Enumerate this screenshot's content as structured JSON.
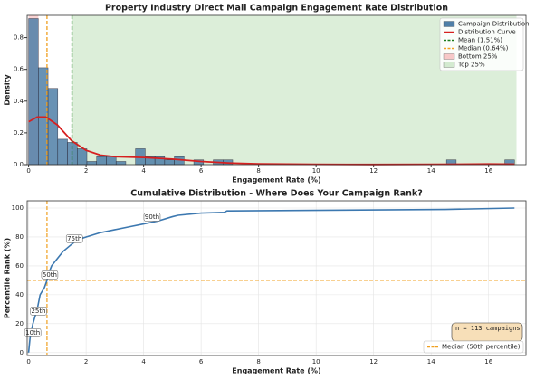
{
  "chart_data": [
    {
      "type": "histogram",
      "title": "Property Industry Direct Mail Campaign Engagement Rate Distribution",
      "x_label": "Engagement Rate (%)",
      "y_label": "Density",
      "name": "Campaign Distribution",
      "color": "#4f7fa8",
      "bins": [
        0,
        0.338,
        0.676,
        1.014,
        1.352,
        1.69,
        2.028,
        2.366,
        2.704,
        3.042,
        3.38,
        3.718,
        4.056,
        4.394,
        4.732,
        5.07,
        5.408,
        5.746,
        6.084,
        6.422,
        6.76,
        7.098,
        7.436,
        7.774,
        8.112,
        8.45,
        8.788,
        9.126,
        9.464,
        9.802,
        10.14,
        10.478,
        10.816,
        11.154,
        11.492,
        11.83,
        12.168,
        12.506,
        12.844,
        13.182,
        13.52,
        13.858,
        14.196,
        14.534,
        14.872,
        15.21,
        15.548,
        15.886,
        16.224,
        16.562,
        16.9
      ],
      "values": [
        0.92,
        0.61,
        0.48,
        0.16,
        0.14,
        0.1,
        0.02,
        0.05,
        0.05,
        0.02,
        0,
        0.1,
        0.05,
        0.05,
        0.03,
        0.05,
        0,
        0.03,
        0,
        0.03,
        0.03,
        0,
        0,
        0,
        0,
        0,
        0,
        0,
        0,
        0,
        0,
        0,
        0,
        0,
        0,
        0,
        0,
        0,
        0,
        0,
        0,
        0,
        0,
        0.03,
        0,
        0,
        0,
        0,
        0,
        0.03
      ],
      "curve": {
        "name": "Distribution Curve",
        "color": "#d62020",
        "x": [
          0,
          0.3,
          0.6,
          1,
          1.5,
          2,
          2.5,
          3,
          4,
          5,
          6,
          7,
          8,
          10,
          12,
          14,
          16,
          16.9
        ],
        "values": [
          0.27,
          0.3,
          0.3,
          0.25,
          0.15,
          0.09,
          0.06,
          0.05,
          0.045,
          0.035,
          0.02,
          0.01,
          0.005,
          0.002,
          0.001,
          0.002,
          0.004,
          0.003
        ]
      },
      "lines": [
        {
          "name": "Mean (1.51%)",
          "value": 1.51,
          "color": "#1a7a1a"
        },
        {
          "name": "Median (0.64%)",
          "value": 0.64,
          "color": "#f0a020"
        }
      ],
      "spans": [
        {
          "name": "Bottom 25%",
          "range": [
            0,
            0.34
          ],
          "color": "#f7c8c8"
        },
        {
          "name": "Top 25%",
          "range": [
            1.51,
            16.97
          ],
          "color": "#d3ead0"
        }
      ],
      "xlim": [
        -0.05,
        17.3
      ],
      "ylim": [
        0,
        0.94
      ],
      "xticks": [
        0,
        2,
        4,
        6,
        8,
        10,
        12,
        14,
        16
      ],
      "yticks": [
        {
          "value": 0,
          "label": "0.0"
        },
        {
          "value": 0.2,
          "label": "0.2"
        },
        {
          "value": 0.4,
          "label": "0.4"
        },
        {
          "value": 0.6,
          "label": "0.6"
        },
        {
          "value": 0.8,
          "label": "0.8"
        }
      ],
      "legend": "upper right"
    },
    {
      "type": "line",
      "title": "Cumulative Distribution - Where Does Your Campaign Rank?",
      "x_label": "Engagement Rate (%)",
      "y_label": "Percentile Rank (%)",
      "color": "#3c78b0",
      "x": [
        0,
        0.05,
        0.15,
        0.3,
        0.4,
        0.55,
        0.64,
        0.7,
        0.8,
        1,
        1.2,
        1.5,
        1.7,
        2,
        2.5,
        3,
        3.5,
        4,
        4.5,
        5,
        5.2,
        6,
        6.8,
        6.9,
        14.5,
        16.9
      ],
      "values": [
        0,
        10,
        20,
        30,
        40,
        45,
        50,
        55,
        60,
        65,
        70,
        75,
        78,
        80,
        83,
        85,
        87,
        89,
        91,
        94,
        95,
        96.5,
        97,
        98,
        99,
        100
      ],
      "annotations": [
        {
          "text": "10th",
          "x": 0.05,
          "y": 10
        },
        {
          "text": "25th",
          "x": 0.25,
          "y": 25
        },
        {
          "text": "50th",
          "x": 0.64,
          "y": 50
        },
        {
          "text": "75th",
          "x": 1.5,
          "y": 75
        },
        {
          "text": "90th",
          "x": 4.2,
          "y": 90
        }
      ],
      "lines": [
        {
          "name": "Median (50th percentile)",
          "x": 0.64,
          "y": 50,
          "color": "#f0a020"
        }
      ],
      "note": "n = 113 campaigns",
      "xlim": [
        -0.05,
        17.3
      ],
      "ylim": [
        -2,
        105
      ],
      "xticks": [
        0,
        2,
        4,
        6,
        8,
        10,
        12,
        14,
        16
      ],
      "yticks": [
        0,
        20,
        40,
        60,
        80,
        100
      ],
      "grid": true,
      "legend": "lower right"
    }
  ]
}
